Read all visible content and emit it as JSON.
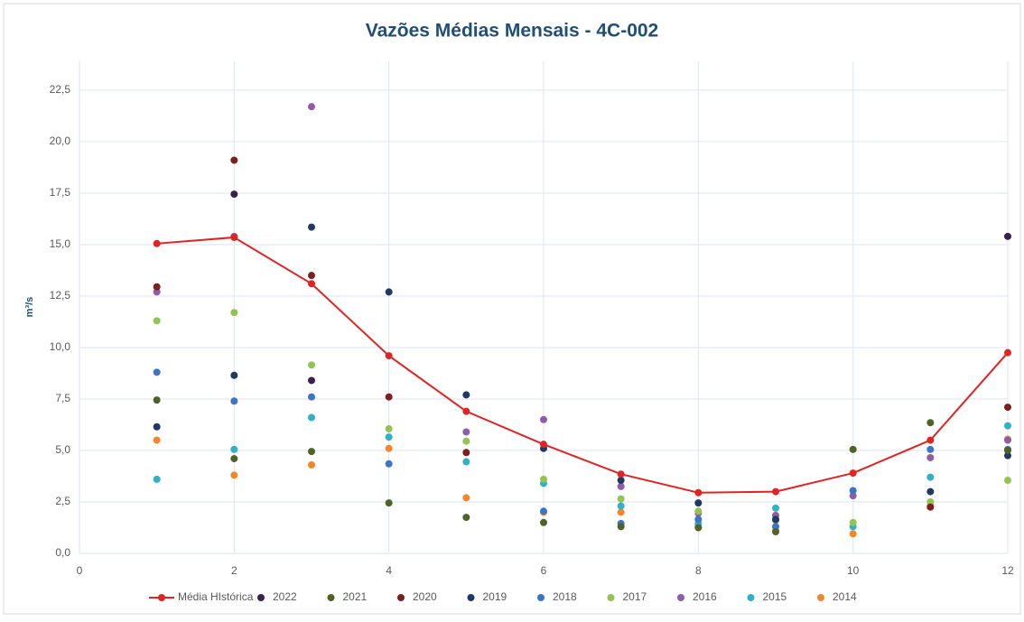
{
  "chart_data": {
    "type": "scatter",
    "title": "Vazões Médias Mensais - 4C-002",
    "y_label": "m³/s",
    "x": [
      1,
      2,
      3,
      4,
      5,
      6,
      7,
      8,
      9,
      10,
      11,
      12
    ],
    "xlim": [
      0,
      12
    ],
    "xticks": [
      0,
      2,
      4,
      6,
      8,
      10,
      12
    ],
    "ylim": [
      0,
      23.9
    ],
    "yticks": [
      {
        "value": 0,
        "label": "0,0"
      },
      {
        "value": 2.5,
        "label": "2,5"
      },
      {
        "value": 5,
        "label": "5,0"
      },
      {
        "value": 7.5,
        "label": "7,5"
      },
      {
        "value": 10,
        "label": "10,0"
      },
      {
        "value": 12.5,
        "label": "12,5"
      },
      {
        "value": 15,
        "label": "15,0"
      },
      {
        "value": 17.5,
        "label": "17,5"
      },
      {
        "value": 20,
        "label": "20,0"
      },
      {
        "value": 22.5,
        "label": "22,5"
      }
    ],
    "grid": true,
    "legend": "bottom",
    "series": [
      {
        "name": "Média HIstórica",
        "type": "line",
        "color": "#e02424",
        "values": [
          15.05,
          15.35,
          13.1,
          9.6,
          6.9,
          5.3,
          3.85,
          2.95,
          3.0,
          3.9,
          5.5,
          9.75
        ]
      },
      {
        "name": "2022",
        "type": "scatter",
        "color": "#3b1f4f",
        "values": [
          null,
          17.45,
          8.4,
          null,
          null,
          null,
          null,
          null,
          null,
          null,
          null,
          15.4
        ]
      },
      {
        "name": "2021",
        "type": "scatter",
        "color": "#4f6228",
        "values": [
          7.45,
          4.6,
          4.95,
          2.45,
          1.75,
          1.5,
          1.3,
          1.25,
          1.05,
          5.05,
          6.35,
          5.0
        ]
      },
      {
        "name": "2020",
        "type": "scatter",
        "color": "#7b1f1f",
        "values": [
          12.95,
          19.1,
          13.5,
          7.6,
          4.9,
          null,
          null,
          null,
          null,
          null,
          2.25,
          7.1
        ]
      },
      {
        "name": "2019",
        "type": "scatter",
        "color": "#1f3864",
        "values": [
          6.15,
          8.65,
          15.85,
          12.7,
          7.7,
          5.1,
          3.55,
          2.45,
          1.65,
          null,
          3.0,
          4.75
        ]
      },
      {
        "name": "2018",
        "type": "scatter",
        "color": "#3a76c4",
        "values": [
          8.8,
          7.4,
          7.6,
          4.35,
          null,
          2.05,
          1.45,
          1.65,
          1.3,
          3.05,
          5.05,
          5.05
        ]
      },
      {
        "name": "2017",
        "type": "scatter",
        "color": "#92c353",
        "values": [
          11.3,
          11.7,
          9.15,
          6.05,
          5.45,
          3.6,
          2.65,
          2.05,
          1.6,
          1.5,
          2.5,
          3.55
        ]
      },
      {
        "name": "2016",
        "type": "scatter",
        "color": "#8e5ca8",
        "values": [
          12.7,
          15.4,
          21.7,
          null,
          5.9,
          6.5,
          3.25,
          1.95,
          1.85,
          2.8,
          4.65,
          5.5
        ]
      },
      {
        "name": "2015",
        "type": "scatter",
        "color": "#31b0c6",
        "values": [
          3.6,
          5.05,
          6.6,
          5.65,
          4.45,
          3.4,
          2.3,
          1.45,
          2.2,
          1.3,
          3.7,
          6.2
        ]
      },
      {
        "name": "2014",
        "type": "scatter",
        "color": "#f0882a",
        "values": [
          5.5,
          3.8,
          4.3,
          5.1,
          2.7,
          2.0,
          2.0,
          1.3,
          1.1,
          0.95,
          2.3,
          5.55
        ]
      }
    ]
  }
}
